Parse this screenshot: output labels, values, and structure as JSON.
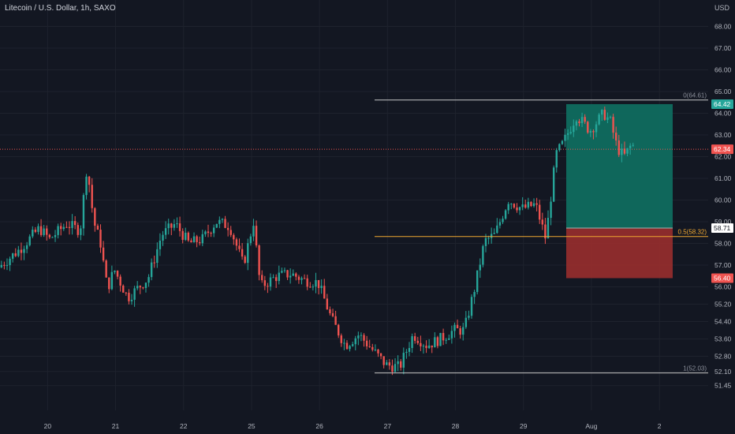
{
  "legend": {
    "symbol_line": "Litecoin / U.S. Dollar, 1h, SAXO"
  },
  "currency": "USD",
  "colors": {
    "background": "#131722",
    "grid": "#1e222d",
    "axis_text": "#b2b5be",
    "up": "#26a69a",
    "down": "#ef5350",
    "fib_line": "#c8c8c8",
    "fib_mid": "#f0a830",
    "profit_zone": "#0f6b5f",
    "loss_zone": "#992e2e"
  },
  "chart_data": {
    "type": "candlestick",
    "price_axis": {
      "ticks": [
        51.45,
        52.1,
        52.8,
        53.6,
        54.4,
        55.2,
        56.0,
        57.0,
        58.0,
        59.0,
        60.0,
        61.0,
        62.0,
        63.0,
        64.0,
        65.0,
        66.0,
        67.0,
        68.0
      ],
      "tick_labels": [
        "51.45",
        "52.10",
        "52.80",
        "53.60",
        "54.40",
        "55.20",
        "56.00",
        "57.00",
        "58.00",
        "59.00",
        "60.00",
        "61.00",
        "62.00",
        "63.00",
        "64.00",
        "65.00",
        "66.00",
        "67.00",
        "68.00"
      ],
      "range": [
        51.1,
        68.8
      ]
    },
    "time_axis": {
      "labels": [
        "20",
        "21",
        "22",
        "25",
        "26",
        "27",
        "28",
        "29",
        "Aug",
        "2"
      ],
      "range_days": [
        19.3,
        32.4
      ]
    },
    "series_path": [
      [
        19.3,
        56.9
      ],
      [
        19.6,
        57.7
      ],
      [
        19.9,
        58.7
      ],
      [
        20.05,
        58.2
      ],
      [
        20.3,
        58.9
      ],
      [
        20.5,
        58.6
      ],
      [
        20.6,
        61.6
      ],
      [
        20.7,
        59.0
      ],
      [
        20.8,
        58.0
      ],
      [
        20.9,
        55.9
      ],
      [
        21.0,
        56.8
      ],
      [
        21.2,
        55.5
      ],
      [
        21.5,
        56.4
      ],
      [
        21.7,
        58.4
      ],
      [
        21.9,
        58.9
      ],
      [
        22.1,
        58.0
      ],
      [
        22.3,
        58.2
      ],
      [
        22.5,
        59.0
      ],
      [
        22.7,
        58.8
      ],
      [
        22.9,
        57.0
      ],
      [
        23.05,
        59.0
      ],
      [
        23.15,
        56.0
      ],
      [
        23.4,
        56.5
      ],
      [
        23.6,
        56.6
      ],
      [
        23.8,
        56.3
      ],
      [
        24.0,
        56.2
      ],
      [
        24.2,
        54.5
      ],
      [
        24.4,
        53.3
      ],
      [
        24.6,
        53.8
      ],
      [
        24.8,
        53.1
      ],
      [
        25.0,
        52.4
      ],
      [
        25.2,
        52.3
      ],
      [
        25.4,
        53.8
      ],
      [
        25.6,
        53.3
      ],
      [
        25.8,
        53.6
      ],
      [
        26.0,
        54.0
      ],
      [
        26.15,
        54.0
      ],
      [
        26.3,
        55.9
      ],
      [
        26.45,
        58.1
      ],
      [
        26.6,
        58.4
      ],
      [
        26.8,
        60.0
      ],
      [
        27.0,
        59.6
      ],
      [
        27.2,
        59.8
      ],
      [
        27.35,
        58.2
      ],
      [
        27.5,
        62.1
      ],
      [
        27.6,
        62.6
      ],
      [
        27.8,
        63.9
      ],
      [
        28.0,
        63.2
      ],
      [
        28.2,
        64.0
      ],
      [
        28.3,
        63.6
      ],
      [
        28.4,
        62.4
      ],
      [
        28.5,
        62.0
      ],
      [
        28.6,
        62.5
      ]
    ],
    "price_labels": [
      {
        "text": "64.42",
        "value": 64.42
      },
      {
        "text": "62.34",
        "value": 62.34
      },
      {
        "text": "58.71",
        "value": 58.71
      },
      {
        "text": "56.40",
        "value": 56.4
      }
    ],
    "fib_levels": [
      {
        "label": "0(64.61)",
        "price": 64.61
      },
      {
        "label": "0.5(58.32)",
        "price": 58.32
      },
      {
        "label": "1(52.03)",
        "price": 52.03
      }
    ],
    "position": {
      "entry": 58.71,
      "target": 64.42,
      "stop": 56.4
    },
    "current_price": 62.34
  }
}
